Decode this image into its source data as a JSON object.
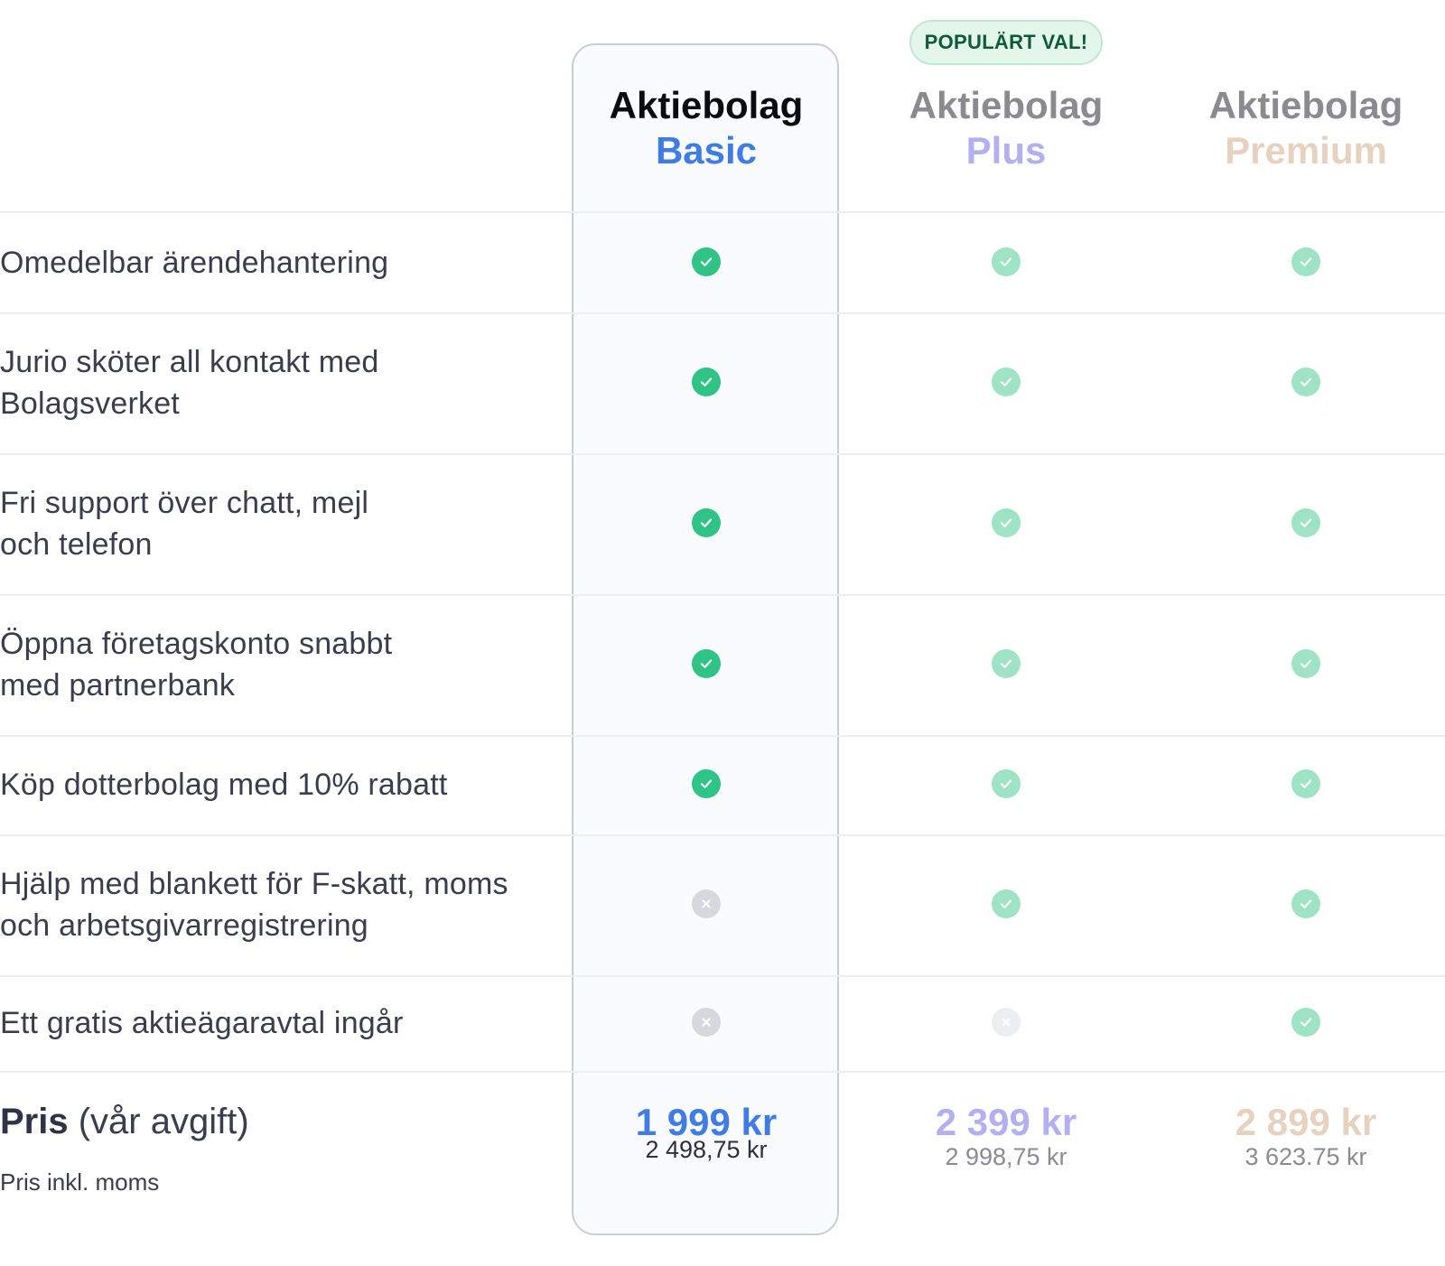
{
  "badge": {
    "label": "POPULÄRT VAL!"
  },
  "plans": [
    {
      "kind": "Aktiebolag",
      "tier": "Basic",
      "kind_color": "#0b0b12",
      "tier_color": "#3f7ce8",
      "price": "1 999 kr",
      "price_incl": "2 498,75 kr",
      "price_color": "#3f7ce8",
      "incl_color": "#2e3040"
    },
    {
      "kind": "Aktiebolag",
      "tier": "Plus",
      "kind_color": "#8a8a8f",
      "tier_color": "#b2b0f0",
      "price": "2 399 kr",
      "price_incl": "2 998,75 kr",
      "price_color": "#b2b0f0",
      "incl_color": "#8a8b93"
    },
    {
      "kind": "Aktiebolag",
      "tier": "Premium",
      "kind_color": "#8a8a8f",
      "tier_color": "#e6d2bf",
      "price": "2 899 kr",
      "price_incl": "3 623.75 kr",
      "price_color": "#e6d2bf",
      "incl_color": "#8a8b93"
    }
  ],
  "features": [
    {
      "label": "Omedelbar ärendehantering",
      "included": [
        true,
        true,
        true
      ]
    },
    {
      "label": "Jurio sköter all kontakt med\nBolagsverket",
      "included": [
        true,
        true,
        true
      ]
    },
    {
      "label": "Fri support över chatt, mejl\noch telefon",
      "included": [
        true,
        true,
        true
      ]
    },
    {
      "label": "Öppna företagskonto snabbt\nmed partnerbank",
      "included": [
        true,
        true,
        true
      ]
    },
    {
      "label": "Köp dotterbolag med 10% rabatt",
      "included": [
        true,
        true,
        true
      ]
    },
    {
      "label": "Hjälp med blankett för F-skatt, moms\noch arbetsgivarregistrering",
      "included": [
        false,
        true,
        true
      ]
    },
    {
      "label": "Ett gratis aktieägaravtal ingår",
      "included": [
        false,
        false,
        true
      ]
    }
  ],
  "price_row": {
    "title_bold": "Pris",
    "title_rest": " (vår avgift)",
    "subtitle": "Pris inkl. moms"
  },
  "colors": {
    "check_active": "#2fc486",
    "check_muted": "#9fe3c5",
    "cross_active": "#d6d8de",
    "cross_muted": "#eceef1"
  }
}
